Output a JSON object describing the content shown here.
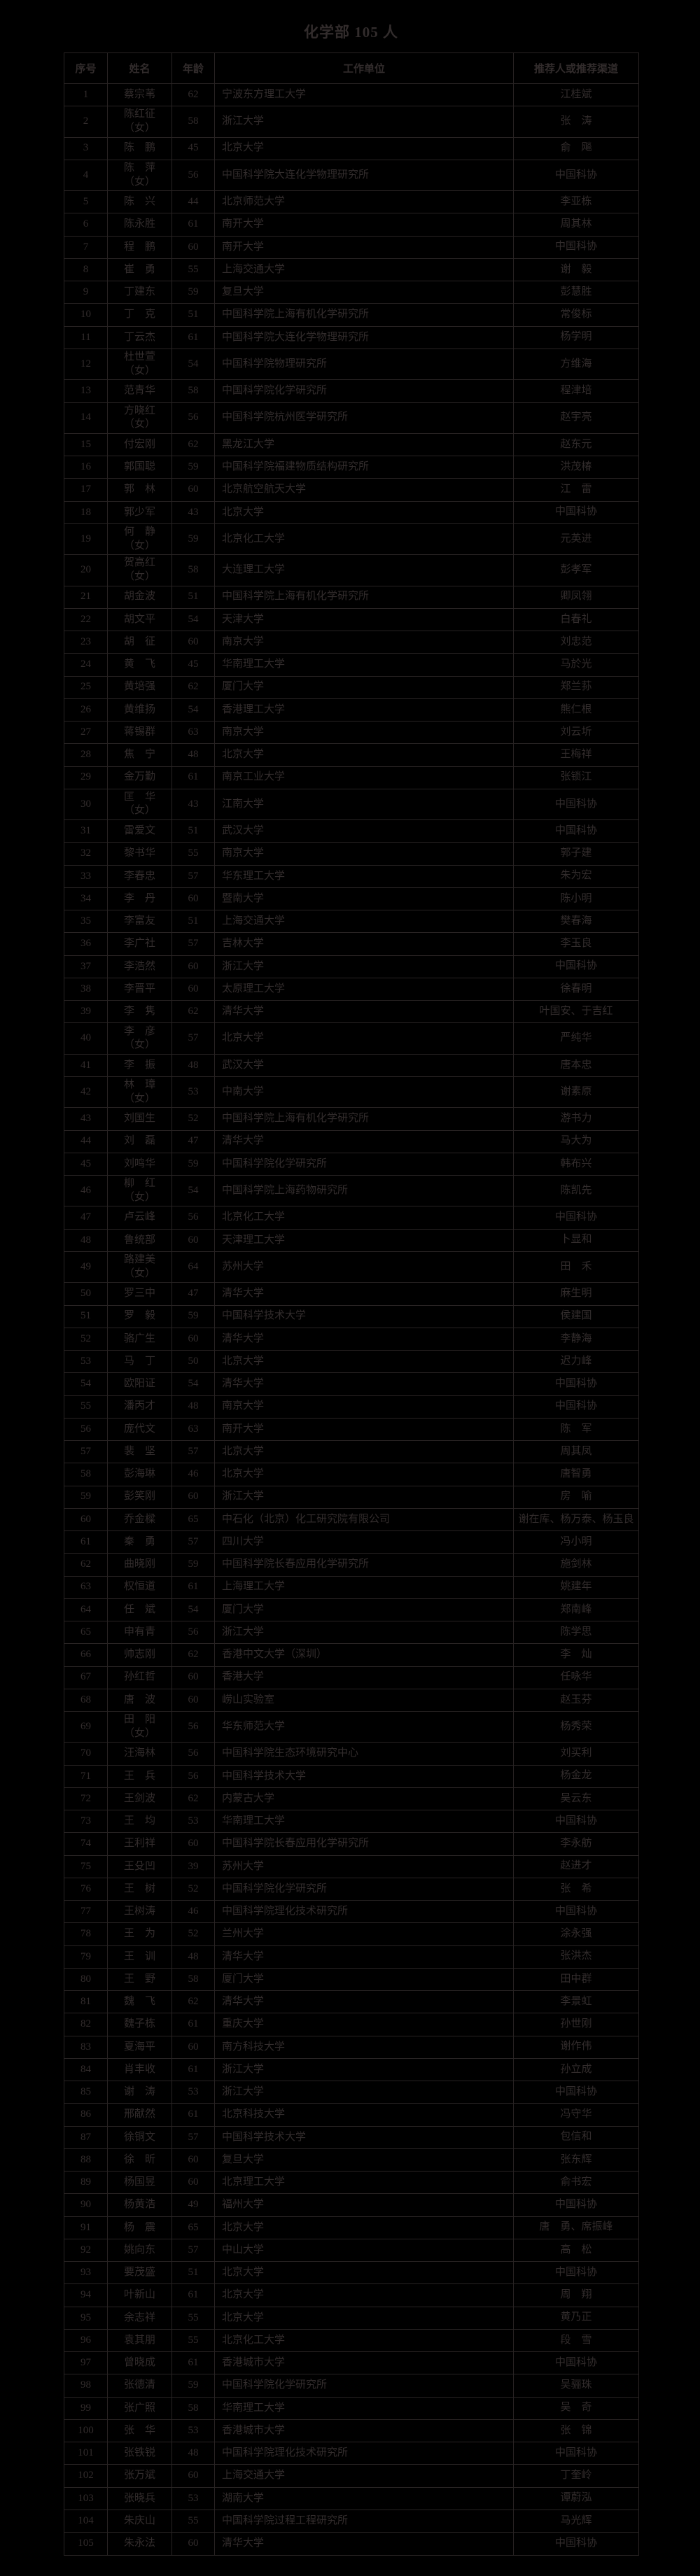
{
  "page": {
    "title": "化学部 105 人",
    "colors": {
      "background": "#000000",
      "text": "#322c2c",
      "border": "#282323"
    }
  },
  "table": {
    "headers": [
      "序号",
      "姓名",
      "年龄",
      "工作单位",
      "推荐人或推荐渠道"
    ],
    "rows": [
      {
        "no": "1",
        "name": "蔡宗苇",
        "age": "62",
        "unit": "宁波东方理工大学",
        "rec": "江桂斌"
      },
      {
        "no": "2",
        "name": "陈红征\n（女）",
        "age": "58",
        "unit": "浙江大学",
        "rec": "张　涛"
      },
      {
        "no": "3",
        "name": "陈　鹏",
        "age": "45",
        "unit": "北京大学",
        "rec": "俞　飚"
      },
      {
        "no": "4",
        "name": "陈　萍\n（女）",
        "age": "56",
        "unit": "中国科学院大连化学物理研究所",
        "rec": "中国科协"
      },
      {
        "no": "5",
        "name": "陈　兴",
        "age": "44",
        "unit": "北京师范大学",
        "rec": "李亚栋"
      },
      {
        "no": "6",
        "name": "陈永胜",
        "age": "61",
        "unit": "南开大学",
        "rec": "周其林"
      },
      {
        "no": "7",
        "name": "程　鹏",
        "age": "60",
        "unit": "南开大学",
        "rec": "中国科协"
      },
      {
        "no": "8",
        "name": "崔　勇",
        "age": "55",
        "unit": "上海交通大学",
        "rec": "谢　毅"
      },
      {
        "no": "9",
        "name": "丁建东",
        "age": "59",
        "unit": "复旦大学",
        "rec": "彭慧胜"
      },
      {
        "no": "10",
        "name": "丁　克",
        "age": "51",
        "unit": "中国科学院上海有机化学研究所",
        "rec": "常俊标"
      },
      {
        "no": "11",
        "name": "丁云杰",
        "age": "61",
        "unit": "中国科学院大连化学物理研究所",
        "rec": "杨学明"
      },
      {
        "no": "12",
        "name": "杜世萱\n（女）",
        "age": "54",
        "unit": "中国科学院物理研究所",
        "rec": "方维海"
      },
      {
        "no": "13",
        "name": "范青华",
        "age": "58",
        "unit": "中国科学院化学研究所",
        "rec": "程津培"
      },
      {
        "no": "14",
        "name": "方晓红\n（女）",
        "age": "56",
        "unit": "中国科学院杭州医学研究所",
        "rec": "赵宇亮"
      },
      {
        "no": "15",
        "name": "付宏刚",
        "age": "62",
        "unit": "黑龙江大学",
        "rec": "赵东元"
      },
      {
        "no": "16",
        "name": "郭国聪",
        "age": "59",
        "unit": "中国科学院福建物质结构研究所",
        "rec": "洪茂椿"
      },
      {
        "no": "17",
        "name": "郭　林",
        "age": "60",
        "unit": "北京航空航天大学",
        "rec": "江　雷"
      },
      {
        "no": "18",
        "name": "郭少军",
        "age": "43",
        "unit": "北京大学",
        "rec": "中国科协"
      },
      {
        "no": "19",
        "name": "何　静\n（女）",
        "age": "59",
        "unit": "北京化工大学",
        "rec": "元英进"
      },
      {
        "no": "20",
        "name": "贺高红\n（女）",
        "age": "58",
        "unit": "大连理工大学",
        "rec": "彭孝军"
      },
      {
        "no": "21",
        "name": "胡金波",
        "age": "51",
        "unit": "中国科学院上海有机化学研究所",
        "rec": "卿凤翎"
      },
      {
        "no": "22",
        "name": "胡文平",
        "age": "54",
        "unit": "天津大学",
        "rec": "白春礼"
      },
      {
        "no": "23",
        "name": "胡　征",
        "age": "60",
        "unit": "南京大学",
        "rec": "刘忠范"
      },
      {
        "no": "24",
        "name": "黄　飞",
        "age": "45",
        "unit": "华南理工大学",
        "rec": "马於光"
      },
      {
        "no": "25",
        "name": "黄培强",
        "age": "62",
        "unit": "厦门大学",
        "rec": "郑兰荪"
      },
      {
        "no": "26",
        "name": "黄维扬",
        "age": "54",
        "unit": "香港理工大学",
        "rec": "熊仁根"
      },
      {
        "no": "27",
        "name": "蒋锡群",
        "age": "63",
        "unit": "南京大学",
        "rec": "刘云圻"
      },
      {
        "no": "28",
        "name": "焦　宁",
        "age": "48",
        "unit": "北京大学",
        "rec": "王梅祥"
      },
      {
        "no": "29",
        "name": "金万勤",
        "age": "61",
        "unit": "南京工业大学",
        "rec": "张锁江"
      },
      {
        "no": "30",
        "name": "匡　华\n（女）",
        "age": "43",
        "unit": "江南大学",
        "rec": "中国科协"
      },
      {
        "no": "31",
        "name": "雷爱文",
        "age": "51",
        "unit": "武汉大学",
        "rec": "中国科协"
      },
      {
        "no": "32",
        "name": "黎书华",
        "age": "55",
        "unit": "南京大学",
        "rec": "郭子建"
      },
      {
        "no": "33",
        "name": "李春忠",
        "age": "57",
        "unit": "华东理工大学",
        "rec": "朱为宏"
      },
      {
        "no": "34",
        "name": "李　丹",
        "age": "60",
        "unit": "暨南大学",
        "rec": "陈小明"
      },
      {
        "no": "35",
        "name": "李富友",
        "age": "51",
        "unit": "上海交通大学",
        "rec": "樊春海"
      },
      {
        "no": "36",
        "name": "李广社",
        "age": "57",
        "unit": "吉林大学",
        "rec": "李玉良"
      },
      {
        "no": "37",
        "name": "李浩然",
        "age": "60",
        "unit": "浙江大学",
        "rec": "中国科协"
      },
      {
        "no": "38",
        "name": "李晋平",
        "age": "60",
        "unit": "太原理工大学",
        "rec": "徐春明"
      },
      {
        "no": "39",
        "name": "李　隽",
        "age": "62",
        "unit": "清华大学",
        "rec": "叶国安、于吉红"
      },
      {
        "no": "40",
        "name": "李　彦\n（女）",
        "age": "57",
        "unit": "北京大学",
        "rec": "严纯华"
      },
      {
        "no": "41",
        "name": "李　振",
        "age": "48",
        "unit": "武汉大学",
        "rec": "唐本忠"
      },
      {
        "no": "42",
        "name": "林　璋\n（女）",
        "age": "53",
        "unit": "中南大学",
        "rec": "谢素原"
      },
      {
        "no": "43",
        "name": "刘国生",
        "age": "52",
        "unit": "中国科学院上海有机化学研究所",
        "rec": "游书力"
      },
      {
        "no": "44",
        "name": "刘　磊",
        "age": "47",
        "unit": "清华大学",
        "rec": "马大为"
      },
      {
        "no": "45",
        "name": "刘鸣华",
        "age": "59",
        "unit": "中国科学院化学研究所",
        "rec": "韩布兴"
      },
      {
        "no": "46",
        "name": "柳　红\n（女）",
        "age": "54",
        "unit": "中国科学院上海药物研究所",
        "rec": "陈凯先"
      },
      {
        "no": "47",
        "name": "卢云峰",
        "age": "56",
        "unit": "北京化工大学",
        "rec": "中国科协"
      },
      {
        "no": "48",
        "name": "鲁统部",
        "age": "60",
        "unit": "天津理工大学",
        "rec": "卜显和"
      },
      {
        "no": "49",
        "name": "路建美\n（女）",
        "age": "64",
        "unit": "苏州大学",
        "rec": "田　禾"
      },
      {
        "no": "50",
        "name": "罗三中",
        "age": "47",
        "unit": "清华大学",
        "rec": "麻生明"
      },
      {
        "no": "51",
        "name": "罗　毅",
        "age": "59",
        "unit": "中国科学技术大学",
        "rec": "侯建国"
      },
      {
        "no": "52",
        "name": "骆广生",
        "age": "60",
        "unit": "清华大学",
        "rec": "李静海"
      },
      {
        "no": "53",
        "name": "马　丁",
        "age": "50",
        "unit": "北京大学",
        "rec": "迟力峰"
      },
      {
        "no": "54",
        "name": "欧阳证",
        "age": "54",
        "unit": "清华大学",
        "rec": "中国科协"
      },
      {
        "no": "55",
        "name": "潘丙才",
        "age": "48",
        "unit": "南京大学",
        "rec": "中国科协"
      },
      {
        "no": "56",
        "name": "庞代文",
        "age": "63",
        "unit": "南开大学",
        "rec": "陈　军"
      },
      {
        "no": "57",
        "name": "裴　坚",
        "age": "57",
        "unit": "北京大学",
        "rec": "周其凤"
      },
      {
        "no": "58",
        "name": "彭海琳",
        "age": "46",
        "unit": "北京大学",
        "rec": "唐智勇"
      },
      {
        "no": "59",
        "name": "彭笑刚",
        "age": "60",
        "unit": "浙江大学",
        "rec": "房　喻"
      },
      {
        "no": "60",
        "name": "乔金樑",
        "age": "65",
        "unit": "中石化（北京）化工研究院有限公司",
        "rec": "谢在库、杨万泰、杨玉良"
      },
      {
        "no": "61",
        "name": "秦　勇",
        "age": "57",
        "unit": "四川大学",
        "rec": "冯小明"
      },
      {
        "no": "62",
        "name": "曲晓刚",
        "age": "59",
        "unit": "中国科学院长春应用化学研究所",
        "rec": "施剑林"
      },
      {
        "no": "63",
        "name": "权恒道",
        "age": "61",
        "unit": "上海理工大学",
        "rec": "姚建年"
      },
      {
        "no": "64",
        "name": "任　斌",
        "age": "54",
        "unit": "厦门大学",
        "rec": "郑南峰"
      },
      {
        "no": "65",
        "name": "申有青",
        "age": "56",
        "unit": "浙江大学",
        "rec": "陈学思"
      },
      {
        "no": "66",
        "name": "帅志刚",
        "age": "62",
        "unit": "香港中文大学（深圳）",
        "rec": "李　灿"
      },
      {
        "no": "67",
        "name": "孙红哲",
        "age": "60",
        "unit": "香港大学",
        "rec": "任咏华"
      },
      {
        "no": "68",
        "name": "唐　波",
        "age": "60",
        "unit": "崂山实验室",
        "rec": "赵玉芬"
      },
      {
        "no": "69",
        "name": "田　阳\n（女）",
        "age": "56",
        "unit": "华东师范大学",
        "rec": "杨秀荣"
      },
      {
        "no": "70",
        "name": "汪海林",
        "age": "56",
        "unit": "中国科学院生态环境研究中心",
        "rec": "刘买利"
      },
      {
        "no": "71",
        "name": "王　兵",
        "age": "56",
        "unit": "中国科学技术大学",
        "rec": "杨金龙"
      },
      {
        "no": "72",
        "name": "王剑波",
        "age": "62",
        "unit": "内蒙古大学",
        "rec": "吴云东"
      },
      {
        "no": "73",
        "name": "王　均",
        "age": "53",
        "unit": "华南理工大学",
        "rec": "中国科协"
      },
      {
        "no": "74",
        "name": "王利祥",
        "age": "60",
        "unit": "中国科学院长春应用化学研究所",
        "rec": "李永舫"
      },
      {
        "no": "75",
        "name": "王殳凹",
        "age": "39",
        "unit": "苏州大学",
        "rec": "赵进才"
      },
      {
        "no": "76",
        "name": "王　树",
        "age": "52",
        "unit": "中国科学院化学研究所",
        "rec": "张　希"
      },
      {
        "no": "77",
        "name": "王树涛",
        "age": "46",
        "unit": "中国科学院理化技术研究所",
        "rec": "中国科协"
      },
      {
        "no": "78",
        "name": "王　为",
        "age": "52",
        "unit": "兰州大学",
        "rec": "涂永强"
      },
      {
        "no": "79",
        "name": "王　训",
        "age": "48",
        "unit": "清华大学",
        "rec": "张洪杰"
      },
      {
        "no": "80",
        "name": "王　野",
        "age": "58",
        "unit": "厦门大学",
        "rec": "田中群"
      },
      {
        "no": "81",
        "name": "魏　飞",
        "age": "62",
        "unit": "清华大学",
        "rec": "李景虹"
      },
      {
        "no": "82",
        "name": "魏子栋",
        "age": "61",
        "unit": "重庆大学",
        "rec": "孙世刚"
      },
      {
        "no": "83",
        "name": "夏海平",
        "age": "60",
        "unit": "南方科技大学",
        "rec": "谢作伟"
      },
      {
        "no": "84",
        "name": "肖丰收",
        "age": "61",
        "unit": "浙江大学",
        "rec": "孙立成"
      },
      {
        "no": "85",
        "name": "谢　涛",
        "age": "53",
        "unit": "浙江大学",
        "rec": "中国科协"
      },
      {
        "no": "86",
        "name": "邢献然",
        "age": "61",
        "unit": "北京科技大学",
        "rec": "冯守华"
      },
      {
        "no": "87",
        "name": "徐铜文",
        "age": "57",
        "unit": "中国科学技术大学",
        "rec": "包信和"
      },
      {
        "no": "88",
        "name": "徐　昕",
        "age": "60",
        "unit": "复旦大学",
        "rec": "张东辉"
      },
      {
        "no": "89",
        "name": "杨国昱",
        "age": "60",
        "unit": "北京理工大学",
        "rec": "俞书宏"
      },
      {
        "no": "90",
        "name": "杨黄浩",
        "age": "49",
        "unit": "福州大学",
        "rec": "中国科协"
      },
      {
        "no": "91",
        "name": "杨　震",
        "age": "65",
        "unit": "北京大学",
        "rec": "唐　勇、席振峰"
      },
      {
        "no": "92",
        "name": "姚向东",
        "age": "57",
        "unit": "中山大学",
        "rec": "高　松"
      },
      {
        "no": "93",
        "name": "要茂盛",
        "age": "51",
        "unit": "北京大学",
        "rec": "中国科协"
      },
      {
        "no": "94",
        "name": "叶新山",
        "age": "61",
        "unit": "北京大学",
        "rec": "周　翔"
      },
      {
        "no": "95",
        "name": "余志祥",
        "age": "55",
        "unit": "北京大学",
        "rec": "黄乃正"
      },
      {
        "no": "96",
        "name": "袁其朋",
        "age": "55",
        "unit": "北京化工大学",
        "rec": "段　雪"
      },
      {
        "no": "97",
        "name": "曾晓成",
        "age": "61",
        "unit": "香港城市大学",
        "rec": "中国科协"
      },
      {
        "no": "98",
        "name": "张德清",
        "age": "59",
        "unit": "中国科学院化学研究所",
        "rec": "吴骊珠"
      },
      {
        "no": "99",
        "name": "张广照",
        "age": "58",
        "unit": "华南理工大学",
        "rec": "吴　奇"
      },
      {
        "no": "100",
        "name": "张　华",
        "age": "53",
        "unit": "香港城市大学",
        "rec": "张　锦"
      },
      {
        "no": "101",
        "name": "张铁锐",
        "age": "48",
        "unit": "中国科学院理化技术研究所",
        "rec": "中国科协"
      },
      {
        "no": "102",
        "name": "张万斌",
        "age": "60",
        "unit": "上海交通大学",
        "rec": "丁奎岭"
      },
      {
        "no": "103",
        "name": "张晓兵",
        "age": "53",
        "unit": "湖南大学",
        "rec": "谭蔚泓"
      },
      {
        "no": "104",
        "name": "朱庆山",
        "age": "55",
        "unit": "中国科学院过程工程研究所",
        "rec": "马光辉"
      },
      {
        "no": "105",
        "name": "朱永法",
        "age": "60",
        "unit": "清华大学",
        "rec": "中国科协"
      }
    ]
  }
}
